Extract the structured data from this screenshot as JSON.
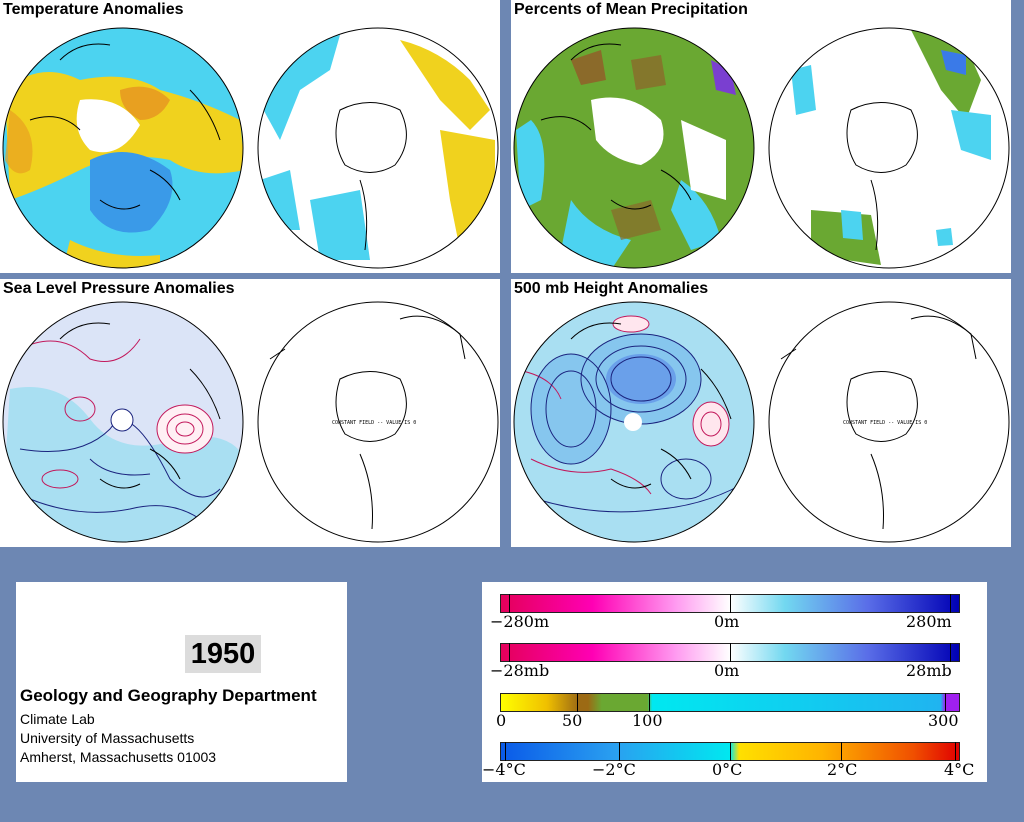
{
  "panels": {
    "temperature": {
      "title": "Temperature Anomalies"
    },
    "precipitation": {
      "title": "Percents of Mean Precipitation"
    },
    "slp": {
      "title": "Sea Level Pressure Anomalies"
    },
    "height500": {
      "title": "500 mb Height Anomalies"
    }
  },
  "constant_field_text": "CONSTANT FIELD -- VALUE IS 0",
  "info": {
    "year": "1950",
    "department": "Geology and Geography Department",
    "lab": "Climate Lab",
    "university": "University of Massachusetts",
    "address": "Amherst, Massachusetts 01003"
  },
  "legends": {
    "height": {
      "min": "−280m",
      "mid": "0m",
      "max": "280m"
    },
    "pressure": {
      "min": "−28mb",
      "mid": "0m",
      "max": "28mb"
    },
    "precip": {
      "l0": "0",
      "l50": "50",
      "l100": "100",
      "l300": "300"
    },
    "temp": {
      "l1": "−4°C",
      "l2": "−2°C",
      "l3": "0°C",
      "l4": "2°C",
      "l5": "4°C"
    }
  },
  "colors": {
    "background": "#6d87b3",
    "anomaly_cyan": "#4cd3f0",
    "anomaly_blue": "#3a9ae8",
    "anomaly_yellow": "#f0d21e",
    "anomaly_orange": "#e8a020",
    "precip_green": "#6aa832",
    "precip_brown": "#8b6a2a",
    "contour_negative": "#1a237e",
    "contour_positive": "#c2185b"
  }
}
